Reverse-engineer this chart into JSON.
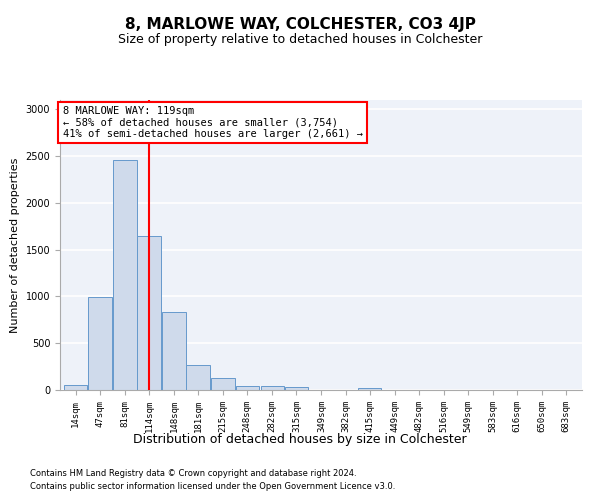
{
  "title": "8, MARLOWE WAY, COLCHESTER, CO3 4JP",
  "subtitle": "Size of property relative to detached houses in Colchester",
  "xlabel": "Distribution of detached houses by size in Colchester",
  "ylabel": "Number of detached properties",
  "footer_line1": "Contains HM Land Registry data © Crown copyright and database right 2024.",
  "footer_line2": "Contains public sector information licensed under the Open Government Licence v3.0.",
  "annotation_line1": "8 MARLOWE WAY: 119sqm",
  "annotation_line2": "← 58% of detached houses are smaller (3,754)",
  "annotation_line3": "41% of semi-detached houses are larger (2,661) →",
  "bar_color": "#cfdaeb",
  "bar_edge_color": "#6699cc",
  "categories": [
    "14sqm",
    "47sqm",
    "81sqm",
    "114sqm",
    "148sqm",
    "181sqm",
    "215sqm",
    "248sqm",
    "282sqm",
    "315sqm",
    "349sqm",
    "382sqm",
    "415sqm",
    "449sqm",
    "482sqm",
    "516sqm",
    "549sqm",
    "583sqm",
    "616sqm",
    "650sqm",
    "683sqm"
  ],
  "bin_edges": [
    14,
    47,
    81,
    114,
    148,
    181,
    215,
    248,
    282,
    315,
    349,
    382,
    415,
    449,
    482,
    516,
    549,
    583,
    616,
    650,
    683
  ],
  "values": [
    50,
    990,
    2460,
    1650,
    830,
    270,
    130,
    45,
    40,
    30,
    0,
    0,
    20,
    0,
    0,
    0,
    0,
    0,
    0,
    0,
    0
  ],
  "ylim": [
    0,
    3100
  ],
  "yticks": [
    0,
    500,
    1000,
    1500,
    2000,
    2500,
    3000
  ],
  "background_color": "#eef2f9",
  "grid_color": "#ffffff",
  "title_fontsize": 11,
  "subtitle_fontsize": 9,
  "xlabel_fontsize": 9,
  "ylabel_fontsize": 8,
  "tick_fontsize": 6.5,
  "annotation_fontsize": 7.5,
  "footer_fontsize": 6
}
